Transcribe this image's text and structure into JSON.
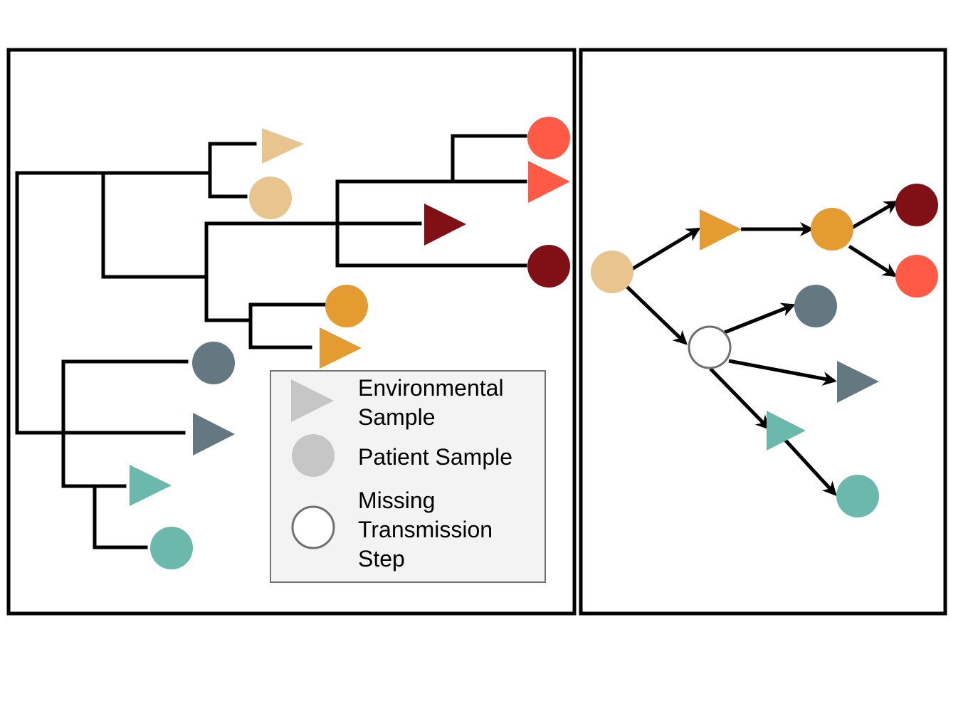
{
  "legend": {
    "environmental_line1": "Environmental",
    "environmental_line2": "Sample",
    "patient": "Patient Sample",
    "missing_line1": "Missing",
    "missing_line2": "Transmission",
    "missing_line3": "Step"
  },
  "colors": {
    "wheat": "#E8C48F",
    "orange": "#E49B2F",
    "tomato": "#FF5A45",
    "maroon": "#801015",
    "slate": "#637880",
    "teal": "#6BB8AC",
    "legend_gray": "#C6C6C6",
    "legend_bg": "#F3F3F3",
    "legend_border": "#707070"
  },
  "icons": [
    "triangle-marker",
    "circle-marker",
    "open-circle-marker",
    "arrow-icon"
  ]
}
